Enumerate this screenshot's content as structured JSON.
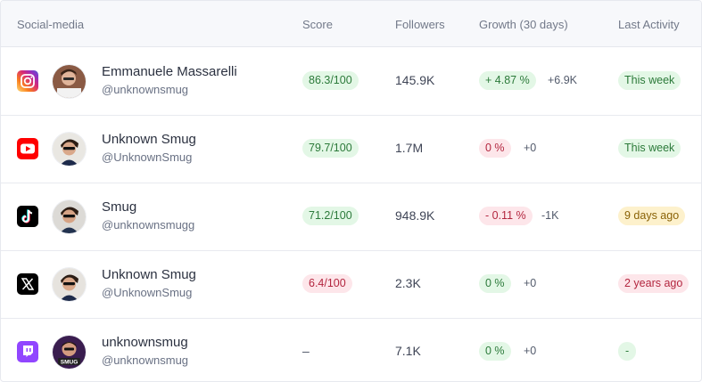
{
  "header": {
    "social_media": "Social-media",
    "score": "Score",
    "followers": "Followers",
    "growth": "Growth (30 days)",
    "last_activity": "Last Activity"
  },
  "rows": [
    {
      "platform": "instagram",
      "name": "Emmanuele Massarelli",
      "handle": "@unknownsmug",
      "score": "86.3/100",
      "score_status": "green",
      "followers": "145.9K",
      "growth": "+ 4.87 %",
      "growth_status": "green",
      "delta": "+6.9K",
      "activity": "This week",
      "activity_status": "green"
    },
    {
      "platform": "youtube",
      "name": "Unknown Smug",
      "handle": "@UnknownSmug",
      "score": "79.7/100",
      "score_status": "green",
      "followers": "1.7M",
      "growth": "0 %",
      "growth_status": "red",
      "delta": "+0",
      "activity": "This week",
      "activity_status": "green"
    },
    {
      "platform": "tiktok",
      "name": "Smug",
      "handle": "@unknownsmugg",
      "score": "71.2/100",
      "score_status": "green",
      "followers": "948.9K",
      "growth": "- 0.11 %",
      "growth_status": "red",
      "delta": "-1K",
      "activity": "9 days ago",
      "activity_status": "yellow"
    },
    {
      "platform": "x",
      "name": "Unknown Smug",
      "handle": "@UnknownSmug",
      "score": "6.4/100",
      "score_status": "red",
      "followers": "2.3K",
      "growth": "0 %",
      "growth_status": "green",
      "delta": "+0",
      "activity": "2 years ago",
      "activity_status": "red"
    },
    {
      "platform": "twitch",
      "name": "unknownsmug",
      "handle": "@unknownsmug",
      "score": "–",
      "score_status": "none",
      "followers": "7.1K",
      "growth": "0 %",
      "growth_status": "green",
      "delta": "+0",
      "activity": "-",
      "activity_status": "green"
    }
  ],
  "colors": {
    "instagram": "#e1306c",
    "youtube": "#ff0000",
    "tiktok": "#000000",
    "x": "#000000",
    "twitch": "#9146ff"
  }
}
